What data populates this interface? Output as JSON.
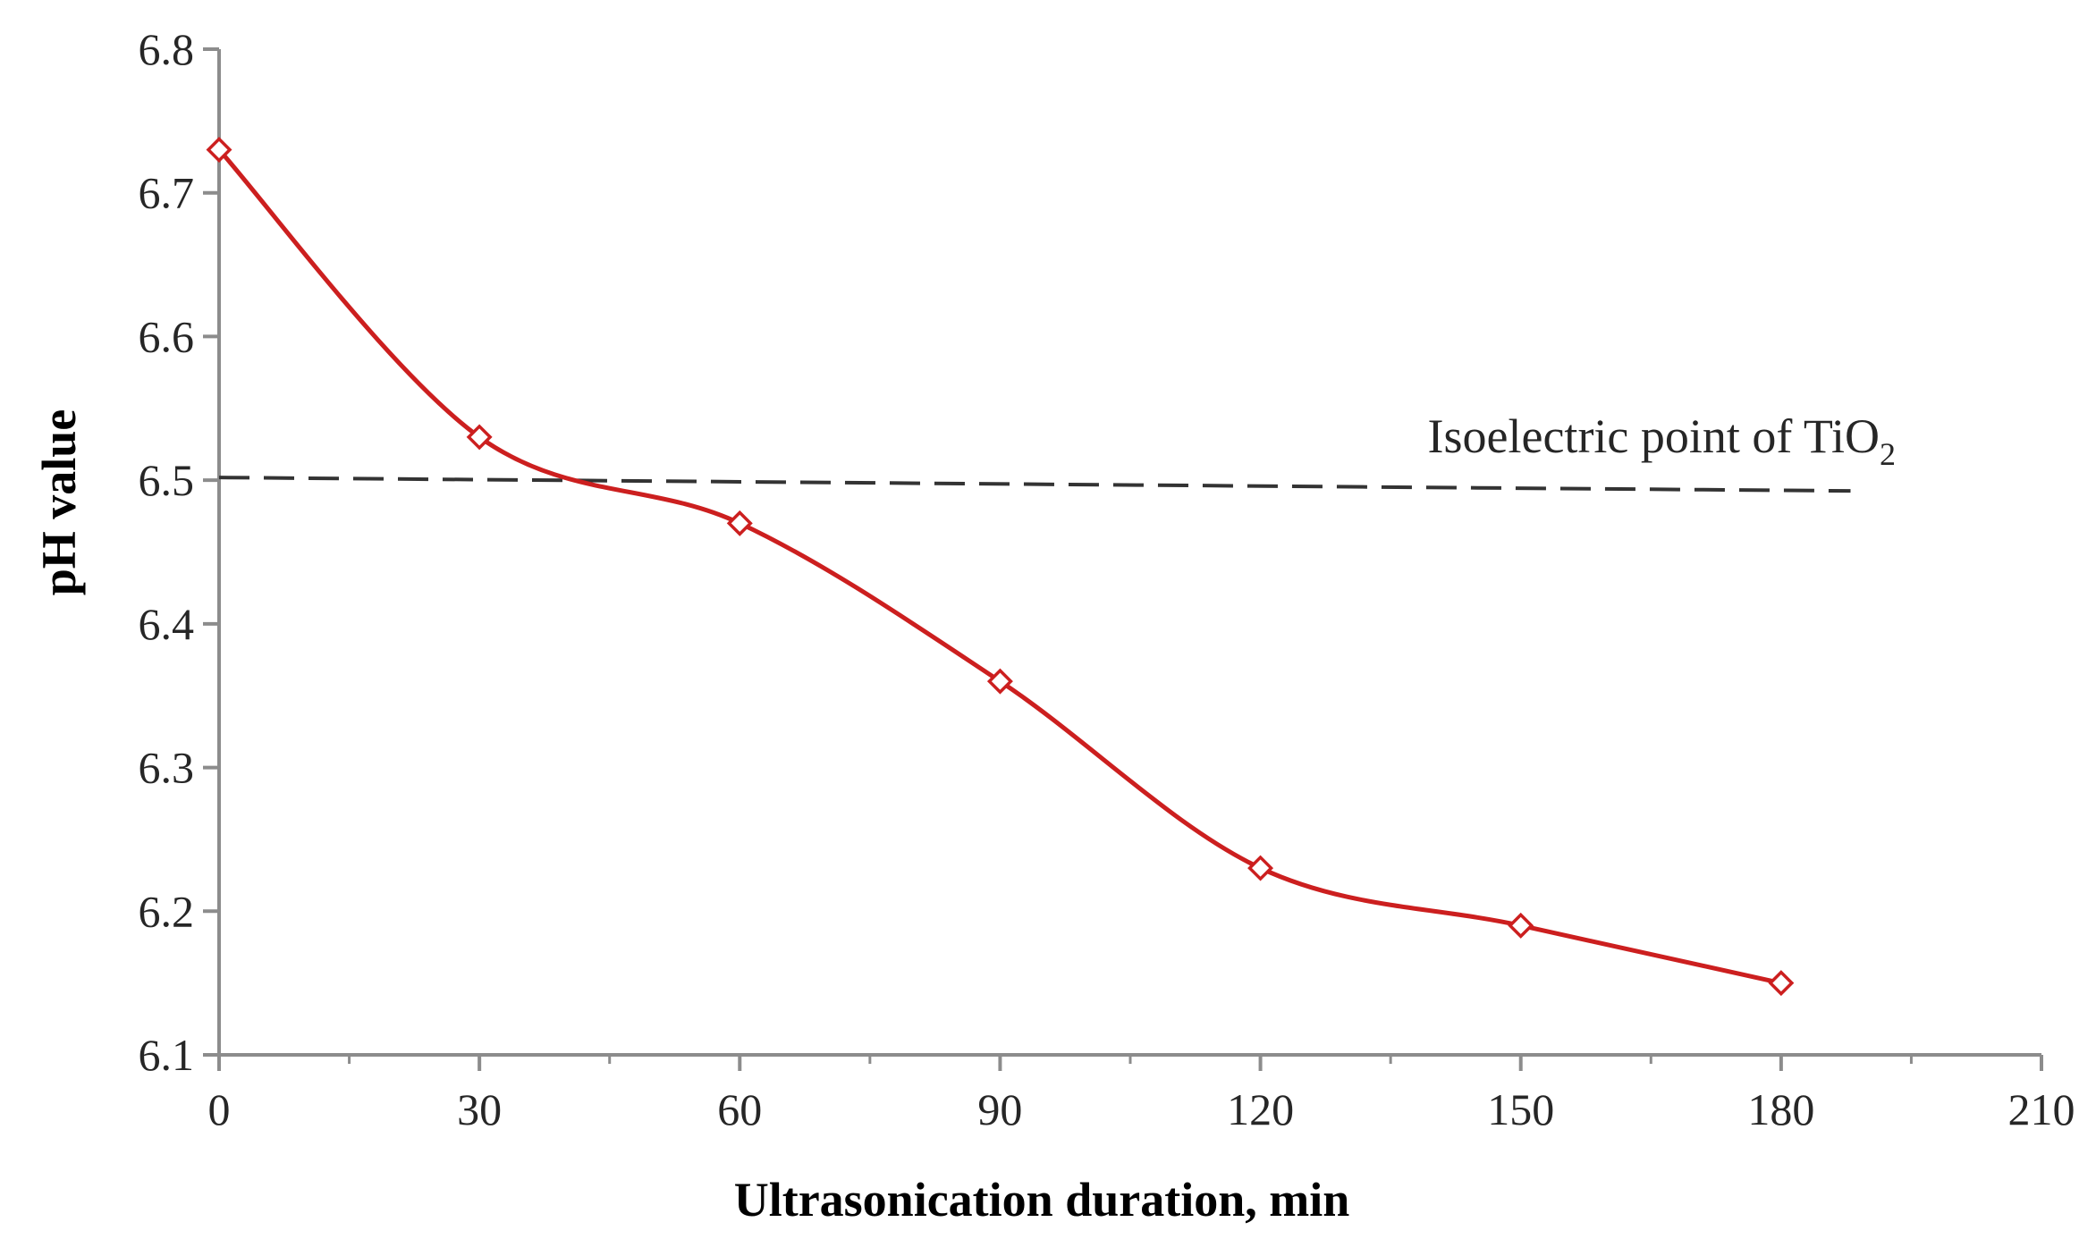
{
  "chart_data": {
    "type": "line",
    "title": "",
    "xlabel": "Ultrasonication duration, min",
    "ylabel": "pH value",
    "xlim": [
      0,
      210
    ],
    "ylim": [
      6.1,
      6.8
    ],
    "x_ticks": [
      "0",
      "30",
      "60",
      "90",
      "120",
      "150",
      "180",
      "210"
    ],
    "y_ticks": [
      "6.1",
      "6.2",
      "6.3",
      "6.4",
      "6.5",
      "6.6",
      "6.7",
      "6.8"
    ],
    "grid": false,
    "legend": "none",
    "series": [
      {
        "name": "pH value",
        "color": "#cc1f1f",
        "marker": "diamond-open",
        "smooth": true,
        "x": [
          0,
          30,
          60,
          90,
          120,
          150,
          180
        ],
        "y": [
          6.73,
          6.53,
          6.47,
          6.36,
          6.23,
          6.19,
          6.15
        ]
      }
    ],
    "reference_line": {
      "label_main": "Isoelectric point of TiO",
      "label_sub": "2",
      "y": 6.5,
      "x_range": [
        0,
        188
      ],
      "style": "dashed",
      "color": "#333333"
    }
  }
}
